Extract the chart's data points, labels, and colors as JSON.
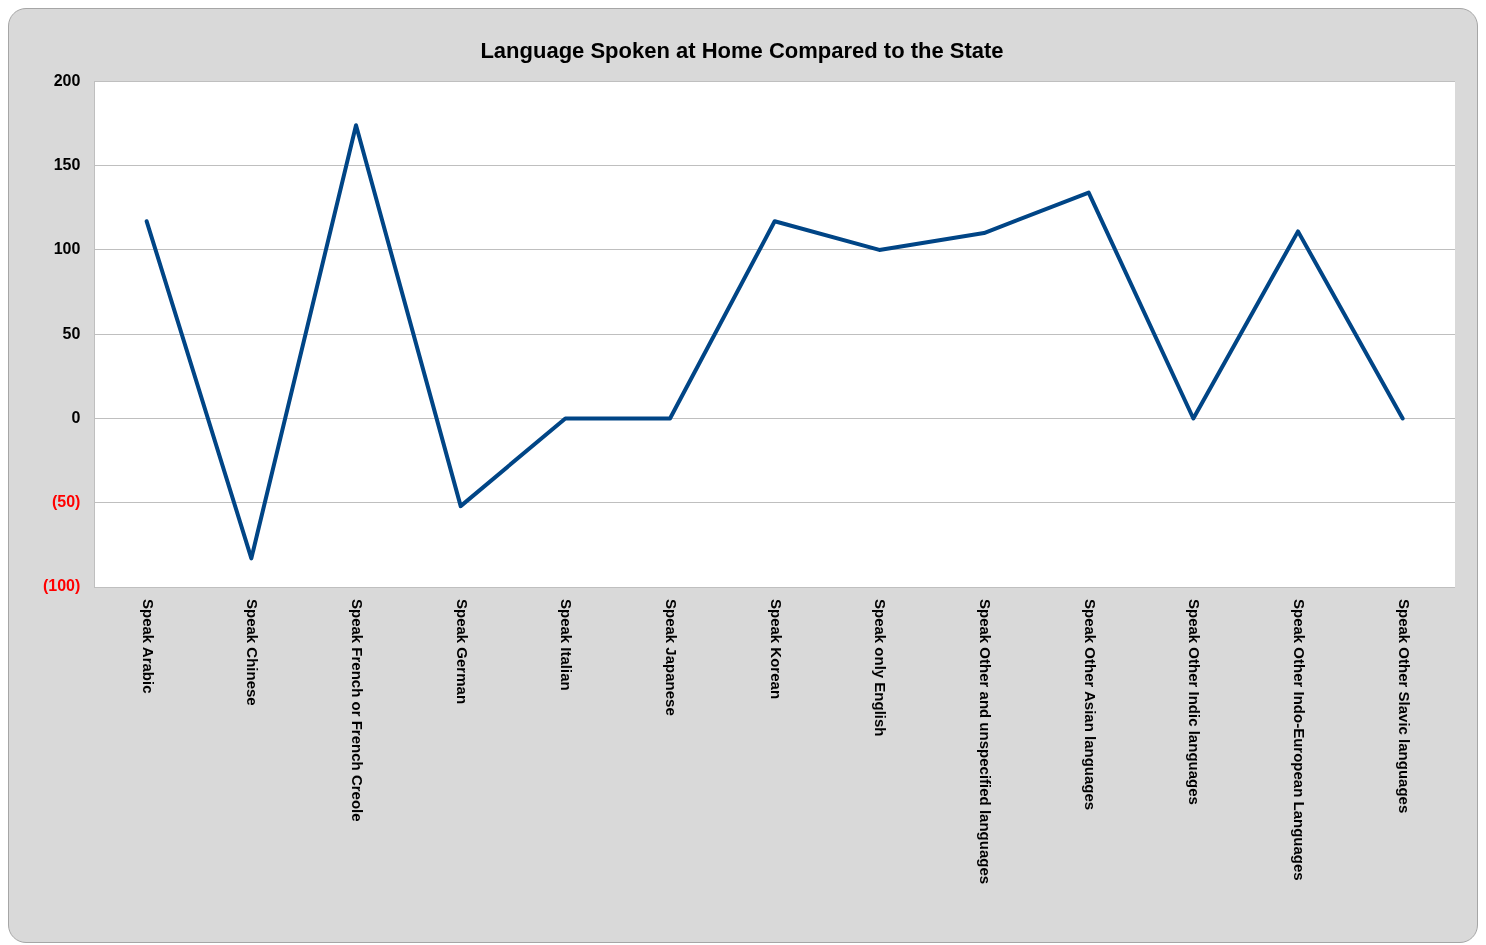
{
  "chart_data": {
    "type": "line",
    "title": "Language Spoken at Home Compared to the State",
    "categories": [
      "Speak Arabic",
      "Speak Chinese",
      "Speak French or French Creole",
      "Speak German",
      "Speak Italian",
      "Speak Japanese",
      "Speak Korean",
      "Speak only English",
      "Speak Other and unspecified languages",
      "Speak Other Asian languages",
      "Speak Other Indic languages",
      "Speak Other Indo-European Languages",
      "Speak Other Slavic languages"
    ],
    "series": [
      {
        "color": "#004586",
        "values": [
          117,
          -83,
          174,
          -52,
          0,
          0,
          117,
          100,
          110,
          134,
          0,
          111,
          0
        ]
      }
    ],
    "ylim": [
      -100,
      200
    ],
    "yticks": [
      {
        "value": -100,
        "label": "(100)"
      },
      {
        "value": -50,
        "label": "(50)"
      },
      0,
      50,
      100,
      150,
      200
    ],
    "grid": "y",
    "legend": false,
    "marker": "none",
    "line_style": "solid"
  }
}
